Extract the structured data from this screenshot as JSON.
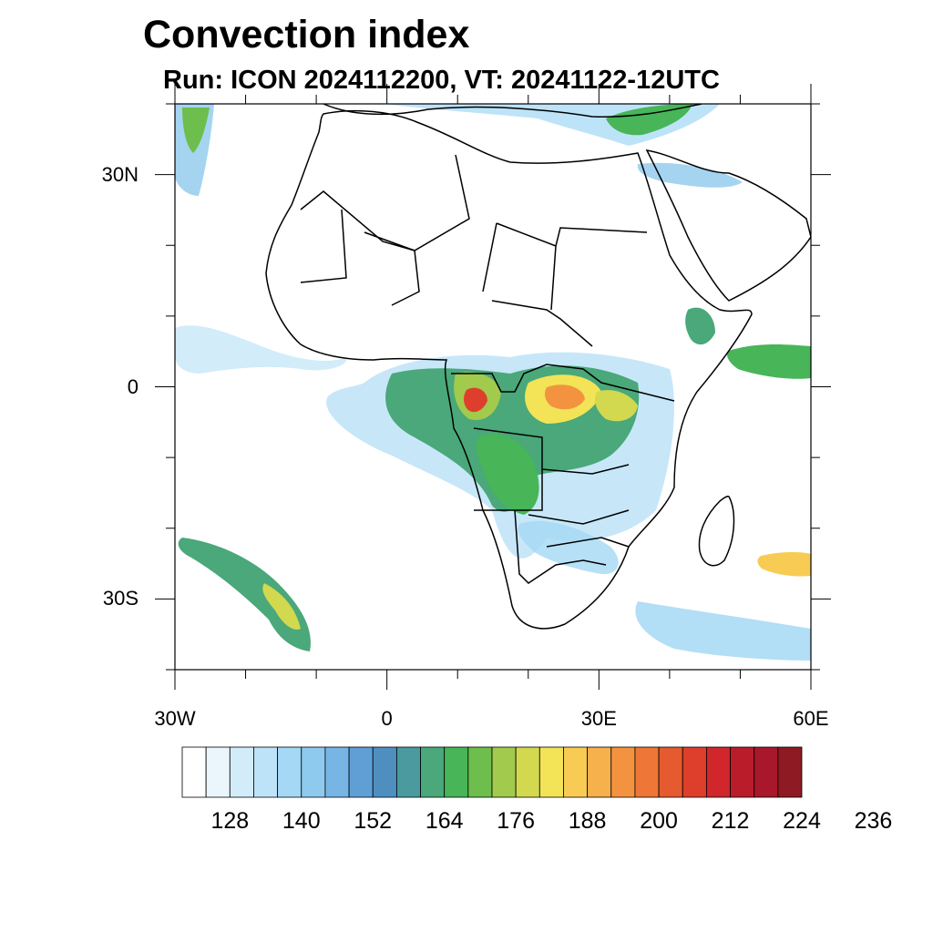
{
  "title": "Convection index",
  "subtitle": "Run: ICON 2024112200,  VT: 20241122-12UTC",
  "map": {
    "type": "filled-contour-map",
    "region": "Africa",
    "lon_range": [
      -30,
      60
    ],
    "lat_range": [
      -40,
      40
    ],
    "lon_ticks": [
      {
        "value": -30,
        "label": "30W"
      },
      {
        "value": 0,
        "label": "0"
      },
      {
        "value": 30,
        "label": "30E"
      },
      {
        "value": 60,
        "label": "60E"
      }
    ],
    "lat_ticks": [
      {
        "value": 30,
        "label": "30N"
      },
      {
        "value": 0,
        "label": "0"
      },
      {
        "value": -30,
        "label": "30S"
      }
    ]
  },
  "colorbar": {
    "levels_labeled": [
      "128",
      "140",
      "152",
      "164",
      "176",
      "188",
      "200",
      "212",
      "224",
      "236"
    ],
    "colors": [
      "#ffffff",
      "#eaf5fc",
      "#d2ecfa",
      "#bde3f8",
      "#a4d8f4",
      "#8ec9ee",
      "#77b6e4",
      "#5f9fd6",
      "#4f8fbf",
      "#4b9aa0",
      "#4aa87a",
      "#47b558",
      "#6dbe4c",
      "#a2ca4c",
      "#d2d94f",
      "#f2e456",
      "#f8cc54",
      "#f6b04c",
      "#f39340",
      "#ee7636",
      "#e65a2f",
      "#de3f2c",
      "#d0262c",
      "#bb1c2a",
      "#a8172b",
      "#8e1a23"
    ]
  }
}
